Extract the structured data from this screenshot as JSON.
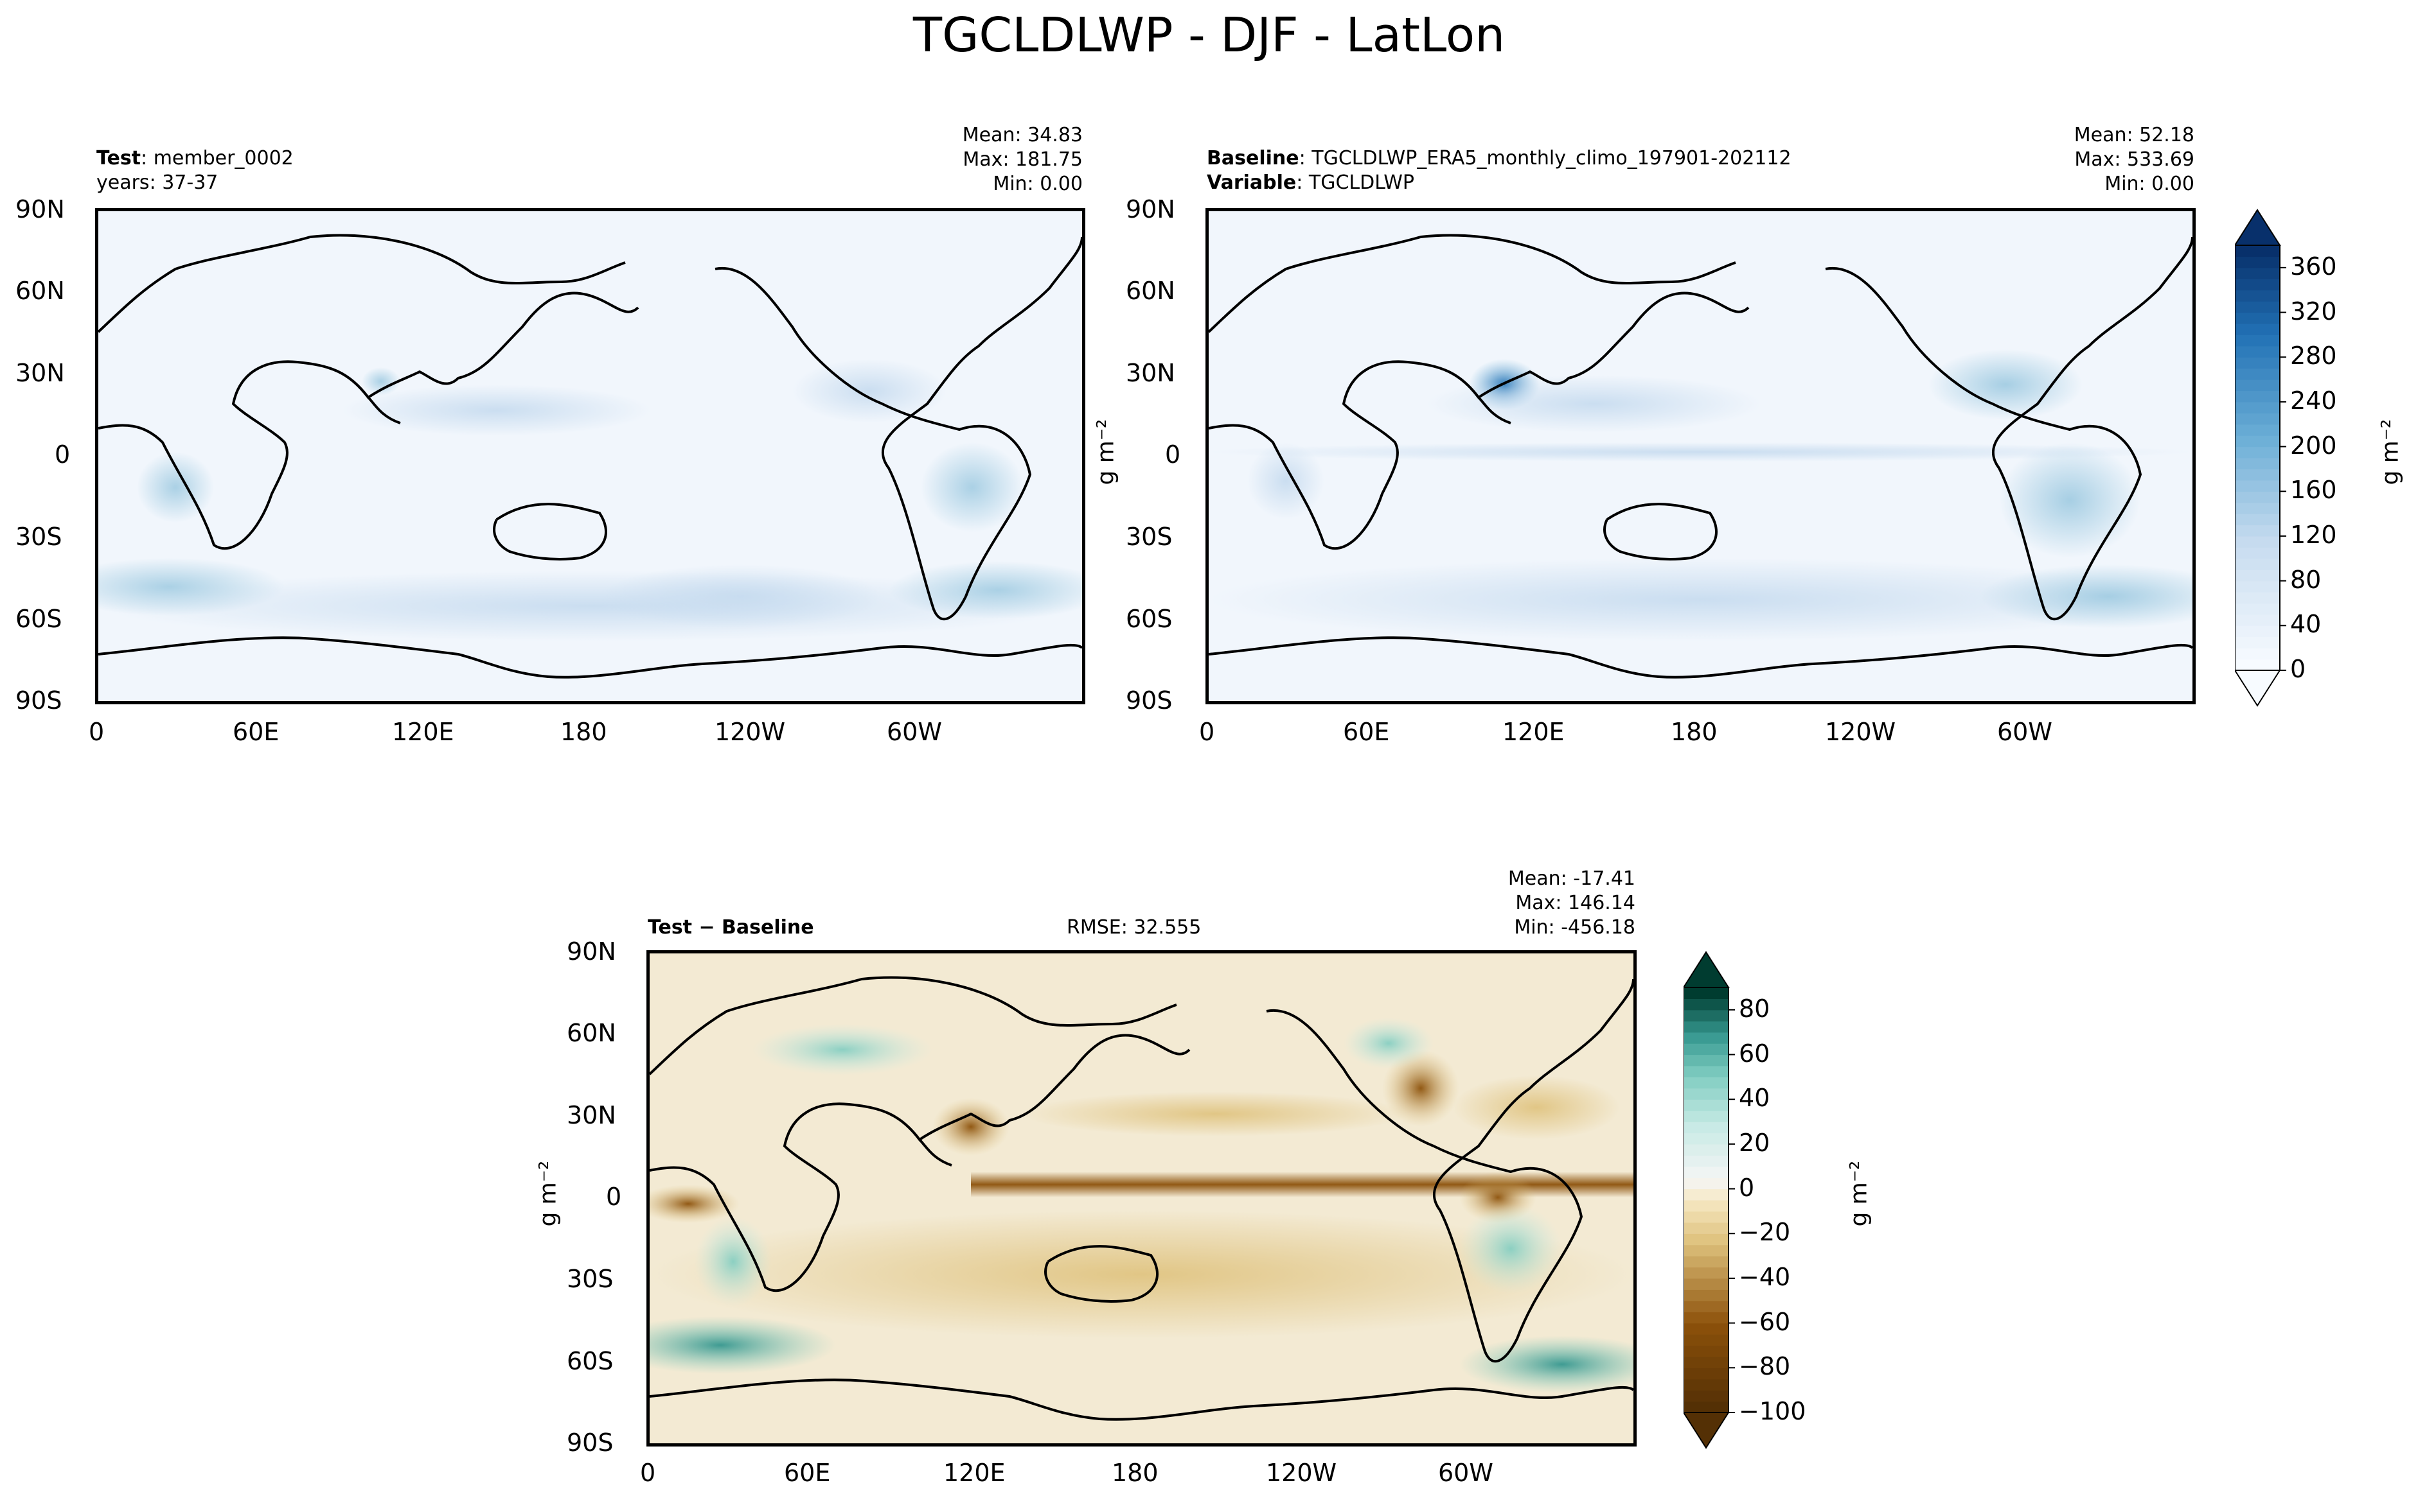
{
  "figure_title": "TGCLDLWP - DJF - LatLon",
  "panels": {
    "test": {
      "label": "Test",
      "name_sep": ": ",
      "name": "member_0002",
      "years_label": "years: 37-37",
      "mean": "Mean: 34.83",
      "max": "Max: 181.75",
      "min": "Min:  0.00"
    },
    "baseline": {
      "label": "Baseline",
      "name_sep": ": ",
      "name": "TGCLDLWP_ERA5_monthly_climo_197901-202112",
      "variable_label": "Variable",
      "variable": "TGCLDLWP",
      "mean": "Mean: 52.18",
      "max": "Max: 533.69",
      "min": "Min:  0.00"
    },
    "diff": {
      "label": "Test − Baseline",
      "rmse": "RMSE: 32.555",
      "mean": "Mean: -17.41",
      "max": "Max: 146.14",
      "min": "Min: -456.18"
    }
  },
  "units_label": "g m⁻²",
  "colors": {
    "ocean_blue_light": "#f4f8fd",
    "blues_mid": "#9ecae1",
    "blues_dark": "#08306b",
    "diff_brown_dark": "#543005",
    "diff_neutral": "#f5f0e1",
    "diff_teal_dark": "#003c30"
  },
  "chart_data": [
    {
      "type": "heatmap",
      "panel": "test",
      "title": "Test: member_0002",
      "subtitle": "years: 37-37",
      "xlabel": "",
      "ylabel": "",
      "x_ticks": [
        "0",
        "60E",
        "120E",
        "180",
        "120W",
        "60W"
      ],
      "y_ticks": [
        "90N",
        "60N",
        "30N",
        "0",
        "30S",
        "60S",
        "90S"
      ],
      "x_range": [
        0,
        360
      ],
      "y_range": [
        -90,
        90
      ],
      "stats": {
        "mean": 34.83,
        "max": 181.75,
        "min": 0.0
      },
      "colormap": "Blues"
    },
    {
      "type": "heatmap",
      "panel": "baseline",
      "title": "Baseline: TGCLDLWP_ERA5_monthly_climo_197901-202112",
      "subtitle": "Variable: TGCLDLWP",
      "ylabel": "g m-2",
      "x_ticks": [
        "0",
        "60E",
        "120E",
        "180",
        "120W",
        "60W"
      ],
      "y_ticks": [
        "90N",
        "60N",
        "30N",
        "0",
        "30S",
        "60S",
        "90S"
      ],
      "x_range": [
        0,
        360
      ],
      "y_range": [
        -90,
        90
      ],
      "stats": {
        "mean": 52.18,
        "max": 533.69,
        "min": 0.0
      },
      "colormap": "Blues",
      "colorbar": {
        "ticks": [
          "0",
          "40",
          "80",
          "120",
          "160",
          "200",
          "240",
          "280",
          "320",
          "360"
        ],
        "range": [
          0,
          380
        ],
        "label": "g m-2"
      }
    },
    {
      "type": "heatmap",
      "panel": "diff",
      "title": "Test - Baseline",
      "rmse": 32.555,
      "ylabel": "g m-2",
      "x_ticks": [
        "0",
        "60E",
        "120E",
        "180",
        "120W",
        "60W"
      ],
      "y_ticks": [
        "90N",
        "60N",
        "30N",
        "0",
        "30S",
        "60S",
        "90S"
      ],
      "x_range": [
        0,
        360
      ],
      "y_range": [
        -90,
        90
      ],
      "stats": {
        "mean": -17.41,
        "max": 146.14,
        "min": -456.18
      },
      "colormap": "BrBG",
      "colorbar": {
        "ticks": [
          "−100",
          "−80",
          "−60",
          "−40",
          "−20",
          "0",
          "20",
          "40",
          "60",
          "80"
        ],
        "range": [
          -100,
          90
        ],
        "label": "g m-2"
      }
    }
  ]
}
